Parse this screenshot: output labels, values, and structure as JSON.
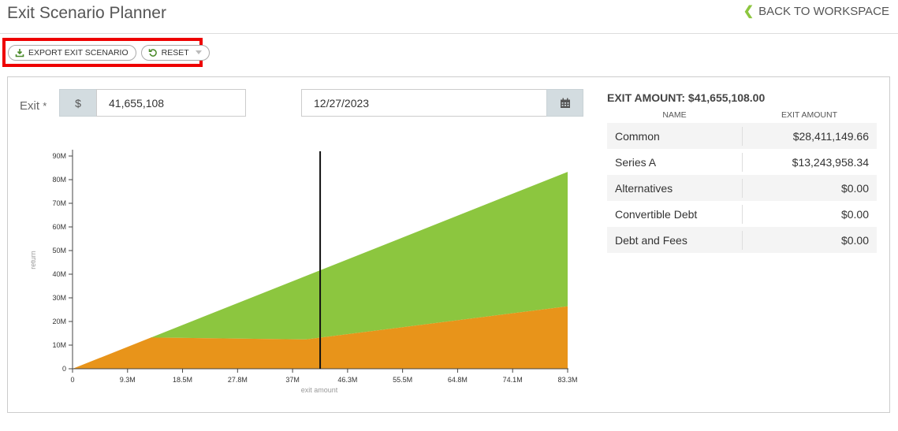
{
  "header": {
    "title": "Exit Scenario Planner",
    "back_label": "BACK TO WORKSPACE"
  },
  "toolbar": {
    "export_label": "EXPORT EXIT SCENARIO",
    "reset_label": "RESET"
  },
  "form": {
    "exit_label": "Exit",
    "required_mark": "*",
    "currency_symbol": "$",
    "exit_amount": "41,655,108",
    "date": "12/27/2023"
  },
  "summary": {
    "title": "EXIT AMOUNT: $41,655,108.00",
    "col_name": "NAME",
    "col_amount": "EXIT AMOUNT",
    "rows": [
      {
        "name": "Common",
        "amount": "$28,411,149.66"
      },
      {
        "name": "Series A",
        "amount": "$13,243,958.34"
      },
      {
        "name": "Alternatives",
        "amount": "$0.00"
      },
      {
        "name": "Convertible Debt",
        "amount": "$0.00"
      },
      {
        "name": "Debt and Fees",
        "amount": "$0.00"
      }
    ]
  },
  "chart_data": {
    "type": "area",
    "xlabel": "exit amount",
    "ylabel": "return",
    "xlim": [
      0,
      83.3
    ],
    "ylim": [
      0,
      90
    ],
    "x_ticks": [
      "0",
      "9.3M",
      "18.5M",
      "27.8M",
      "37M",
      "46.3M",
      "55.5M",
      "64.8M",
      "74.1M",
      "83.3M"
    ],
    "y_ticks": [
      "0",
      "10M",
      "20M",
      "30M",
      "40M",
      "50M",
      "60M",
      "70M",
      "80M",
      "90M"
    ],
    "marker_x": 41.66,
    "colors": {
      "orange": "#e8941a",
      "green": "#8cc63f"
    },
    "series": [
      {
        "x": [
          0,
          13.2,
          39.3,
          83.3
        ],
        "values": [
          0,
          13.2,
          12.4,
          26.4
        ]
      },
      {
        "x": [
          0,
          83.3
        ],
        "values": [
          0,
          83.3
        ]
      }
    ]
  }
}
